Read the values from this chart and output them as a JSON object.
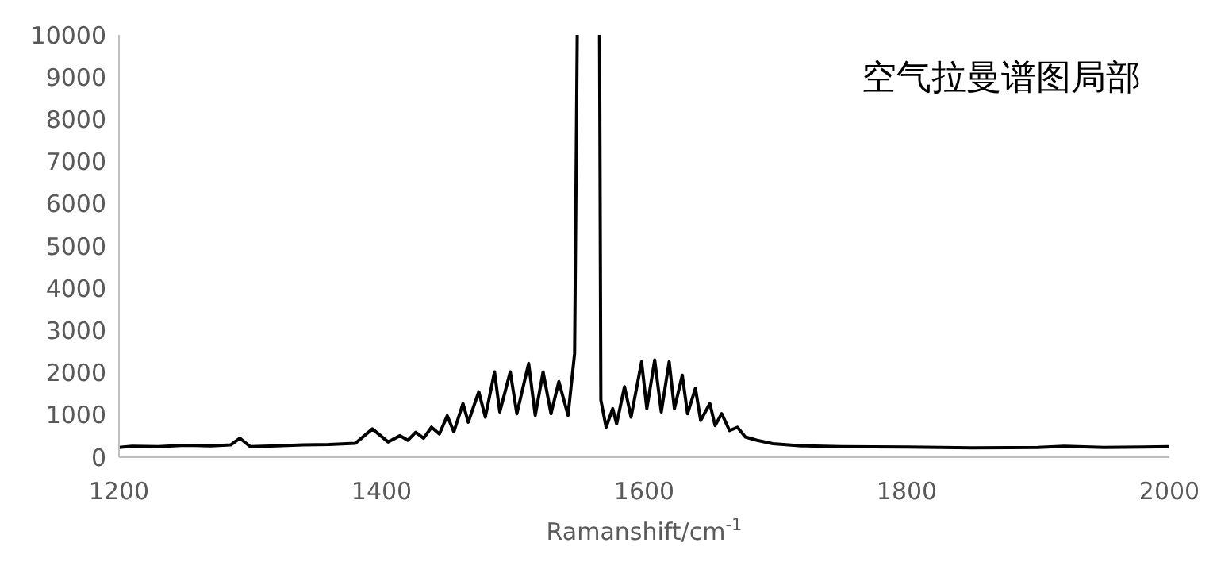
{
  "chart_data": {
    "type": "line",
    "title": "空气拉曼谱图局部",
    "xlabel": "Ramanshift/cm$^{-1}$",
    "x": [
      1200,
      1210,
      1230,
      1250,
      1270,
      1285,
      1292,
      1300,
      1320,
      1340,
      1360,
      1380,
      1393,
      1405,
      1414,
      1420,
      1426,
      1432,
      1438,
      1444,
      1450,
      1455,
      1462,
      1466,
      1474,
      1479,
      1486,
      1490,
      1498,
      1503,
      1512,
      1517,
      1523,
      1529,
      1535,
      1542,
      1547,
      1549,
      1557,
      1566,
      1567,
      1571,
      1576,
      1579,
      1585,
      1590,
      1598,
      1602,
      1608,
      1613,
      1619,
      1623,
      1629,
      1633,
      1639,
      1643,
      1650,
      1654,
      1659,
      1665,
      1671,
      1677,
      1686,
      1698,
      1720,
      1750,
      1800,
      1850,
      1900,
      1920,
      1950,
      1980,
      2000
    ],
    "series": [
      {
        "color": "#000000",
        "values": [
          230,
          260,
          250,
          280,
          270,
          290,
          450,
          250,
          270,
          290,
          300,
          330,
          670,
          360,
          510,
          400,
          590,
          450,
          710,
          550,
          980,
          600,
          1270,
          830,
          1550,
          950,
          2020,
          1070,
          2020,
          1030,
          2220,
          990,
          2020,
          1030,
          1790,
          990,
          2460,
          10000,
          null,
          10000,
          1350,
          710,
          1150,
          790,
          1670,
          950,
          2260,
          1150,
          2300,
          1070,
          2260,
          1150,
          1940,
          1030,
          1630,
          870,
          1270,
          750,
          1030,
          630,
          710,
          480,
          400,
          320,
          270,
          250,
          240,
          220,
          230,
          260,
          230,
          240,
          250
        ]
      }
    ],
    "xlim": [
      1200,
      2000
    ],
    "xticks": [
      1200,
      1400,
      1600,
      1800,
      2000
    ],
    "ylim": [
      0,
      10000
    ],
    "yticks": [
      0,
      1000,
      2000,
      3000,
      4000,
      5000,
      6000,
      7000,
      8000,
      9000,
      10000
    ],
    "marker": "none",
    "line_style": "solid"
  }
}
